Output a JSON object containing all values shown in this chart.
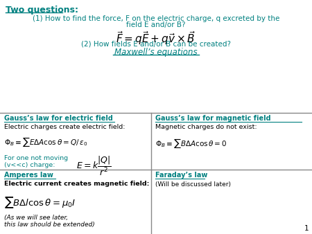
{
  "bg_color": "#ffffff",
  "teal_color": "#008080",
  "black_color": "#000000",
  "gray_color": "#888888",
  "slide_number": "1",
  "top_title": "Two questions:",
  "cell_tl_title": "Gauss’s law for electric field",
  "cell_tl_sub": "Electric charges create electric field:",
  "cell_tl_eq1": "$\\Phi_B \\equiv \\sum E\\Delta A \\cos\\theta = Q/\\,\\varepsilon_0$",
  "cell_tl_note1": "For one not moving",
  "cell_tl_note2": "(v<<c) charge:",
  "cell_tl_eq2": "$E = k\\dfrac{|Q|}{r^2}$",
  "cell_tr_title": "Gauss’s law for magnetic field",
  "cell_tr_sub": "Magnetic charges do not exist:",
  "cell_tr_eq1": "$\\Phi_B \\equiv \\sum B\\Delta A \\cos\\theta = 0$",
  "cell_bl_title": "Amperes law",
  "cell_bl_sub": "Electric current creates magnetic field:",
  "cell_bl_eq1": "$\\sum B\\Delta l \\cos\\theta = \\mu_0 I$",
  "cell_bl_note1": "(As we will see later,",
  "cell_bl_note2": "this law should be extended)",
  "cell_br_title": "Faraday’s law",
  "cell_br_sub": "(Will be discussed later)",
  "q1_line1": "(1) How to find the force, F on the electric charge, q excreted by the",
  "q1_line2": "field E and/or B?",
  "q1_formula": "$\\vec{F} = q\\vec{E} + q\\vec{v} \\times \\vec{B}$",
  "q2": "(2) How fields E and/or B can be created?",
  "maxwell": "Maxwell’s equations",
  "fig_w": 4.5,
  "fig_h": 3.38,
  "dpi": 100,
  "xlim": [
    0,
    450
  ],
  "ylim": [
    0,
    338
  ],
  "grid_y_top": 175,
  "grid_y_mid": 93,
  "grid_y_bot": 0,
  "grid_x_mid": 218
}
